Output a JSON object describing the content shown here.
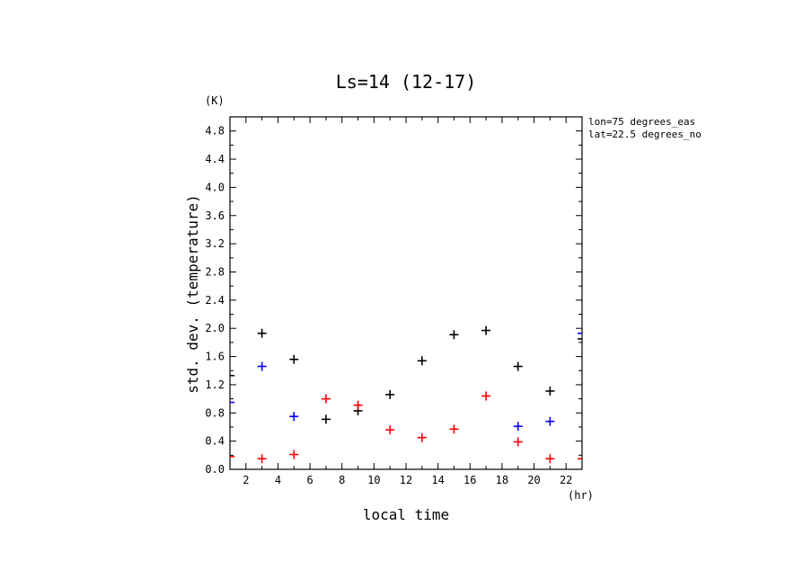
{
  "chart_data": {
    "type": "scatter",
    "title": "Ls=14 (12-17)",
    "xlabel": "local time",
    "ylabel": "std. dev. (temperature)",
    "x_unit": "(hr)",
    "y_unit": "(K)",
    "xlim": [
      1,
      23
    ],
    "ylim": [
      0,
      5
    ],
    "xticks": [
      2,
      4,
      6,
      8,
      10,
      12,
      14,
      16,
      18,
      20,
      22
    ],
    "yticks": [
      0.0,
      0.4,
      0.8,
      1.2,
      1.6,
      2.0,
      2.4,
      2.8,
      3.2,
      3.6,
      4.0,
      4.4,
      4.8
    ],
    "ytick_labels": [
      "0.0",
      "0.4",
      "0.8",
      "1.2",
      "1.6",
      "2.0",
      "2.4",
      "2.8",
      "3.2",
      "3.6",
      "4.0",
      "4.4",
      "4.8"
    ],
    "annotations": [
      "lon=75 degrees_eas",
      "lat=22.5 degrees_no"
    ],
    "grid": false,
    "series": [
      {
        "color": "#000000",
        "points": [
          [
            1,
            1.33
          ],
          [
            3,
            1.93
          ],
          [
            5,
            1.56
          ],
          [
            7,
            0.71
          ],
          [
            9,
            0.83
          ],
          [
            11,
            1.06
          ],
          [
            13,
            1.54
          ],
          [
            15,
            1.91
          ],
          [
            17,
            1.97
          ],
          [
            19,
            1.46
          ],
          [
            21,
            1.11
          ],
          [
            23,
            1.85
          ]
        ]
      },
      {
        "color": "#0000ff",
        "points": [
          [
            1,
            0.95
          ],
          [
            3,
            1.46
          ],
          [
            5,
            0.75
          ],
          [
            19,
            0.61
          ],
          [
            21,
            0.68
          ],
          [
            23,
            1.93
          ]
        ]
      },
      {
        "color": "#ff0000",
        "points": [
          [
            1,
            0.18
          ],
          [
            3,
            0.15
          ],
          [
            5,
            0.21
          ],
          [
            7,
            1.0
          ],
          [
            9,
            0.91
          ],
          [
            11,
            0.56
          ],
          [
            13,
            0.45
          ],
          [
            15,
            0.57
          ],
          [
            17,
            1.04
          ],
          [
            19,
            0.39
          ],
          [
            21,
            0.15
          ],
          [
            23,
            0.15
          ]
        ]
      }
    ]
  }
}
